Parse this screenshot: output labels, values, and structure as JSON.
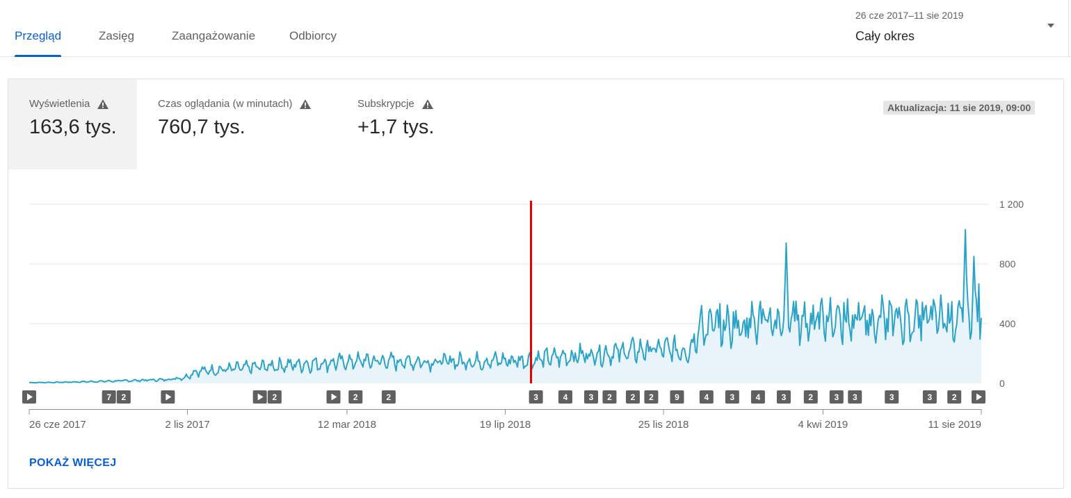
{
  "tabs": [
    {
      "label": "Przegląd",
      "active": true
    },
    {
      "label": "Zasięg",
      "active": false
    },
    {
      "label": "Zaangażowanie",
      "active": false
    },
    {
      "label": "Odbiorcy",
      "active": false
    }
  ],
  "date_picker": {
    "range": "26 cze 2017–11 sie 2019",
    "period": "Cały okres",
    "icon": "chevron-down-icon"
  },
  "metrics": [
    {
      "label": "Wyświetlenia",
      "value": "163,6 tys.",
      "icon": "warning-icon",
      "active": true
    },
    {
      "label": "Czas oglądania (w minutach)",
      "value": "760,7 tys.",
      "icon": "warning-icon",
      "active": false
    },
    {
      "label": "Subskrypcje",
      "value": "+1,7 tys.",
      "icon": "warning-icon",
      "active": false
    }
  ],
  "updated": "Aktualizacja: 11 sie 2019, 09:00",
  "show_more": "POKAŻ WIĘCEJ",
  "colors": {
    "accent": "#065fd4",
    "series": "#2ba3c9",
    "fill": "#e8f4fa",
    "annotation": "#e00000",
    "marker": "#606060"
  },
  "chart_data": {
    "type": "area",
    "ylim": [
      0,
      1200
    ],
    "yticks": [
      {
        "value": 0,
        "label": "0"
      },
      {
        "value": 400,
        "label": "400"
      },
      {
        "value": 800,
        "label": "800"
      },
      {
        "value": 1200,
        "label": "1 200"
      }
    ],
    "xstart": "2017-06-26",
    "xend": "2019-08-11",
    "xticks": [
      {
        "date": "2017-06-26",
        "label": "26 cze 2017"
      },
      {
        "date": "2017-11-02",
        "label": "2 lis 2017"
      },
      {
        "date": "2018-03-12",
        "label": "12 mar 2018"
      },
      {
        "date": "2018-07-19",
        "label": "19 lip 2018"
      },
      {
        "date": "2018-11-25",
        "label": "25 lis 2018"
      },
      {
        "date": "2019-04-04",
        "label": "4 kwi 2019"
      },
      {
        "date": "2019-08-11",
        "label": "11 sie 2019"
      }
    ],
    "grid": true,
    "trend": [
      {
        "date": "2017-06-26",
        "value": 5
      },
      {
        "date": "2017-07-25",
        "value": 8
      },
      {
        "date": "2017-08-30",
        "value": 15
      },
      {
        "date": "2017-10-15",
        "value": 25
      },
      {
        "date": "2017-10-31",
        "value": 40
      },
      {
        "date": "2017-11-08",
        "value": 80
      },
      {
        "date": "2018-01-15",
        "value": 120
      },
      {
        "date": "2018-03-25",
        "value": 150
      },
      {
        "date": "2018-05-20",
        "value": 145
      },
      {
        "date": "2018-08-05",
        "value": 155
      },
      {
        "date": "2018-09-20",
        "value": 190
      },
      {
        "date": "2018-11-20",
        "value": 230
      },
      {
        "date": "2018-12-15",
        "value": 220
      },
      {
        "date": "2018-12-25",
        "value": 370
      },
      {
        "date": "2019-02-20",
        "value": 420
      },
      {
        "date": "2019-05-15",
        "value": 420
      },
      {
        "date": "2019-08-01",
        "value": 440
      },
      {
        "date": "2019-08-11",
        "value": 520
      }
    ],
    "spikes": [
      {
        "date": "2019-03-05",
        "value": 940
      },
      {
        "date": "2019-07-29",
        "value": 1030
      },
      {
        "date": "2019-08-05",
        "value": 850
      }
    ],
    "annotation_line_date": "2018-08-09",
    "markers": [
      {
        "date": "2017-06-26",
        "label": "",
        "type": "play"
      },
      {
        "date": "2017-08-30",
        "label": "7",
        "type": "count"
      },
      {
        "date": "2017-09-11",
        "label": "2",
        "type": "count"
      },
      {
        "date": "2017-10-17",
        "label": "",
        "type": "play"
      },
      {
        "date": "2017-12-31",
        "label": "",
        "type": "play"
      },
      {
        "date": "2018-01-12",
        "label": "2",
        "type": "count"
      },
      {
        "date": "2018-03-01",
        "label": "",
        "type": "play"
      },
      {
        "date": "2018-03-19",
        "label": "2",
        "type": "count"
      },
      {
        "date": "2018-04-15",
        "label": "2",
        "type": "count"
      },
      {
        "date": "2018-08-13",
        "label": "3",
        "type": "count"
      },
      {
        "date": "2018-09-06",
        "label": "4",
        "type": "count"
      },
      {
        "date": "2018-09-27",
        "label": "3",
        "type": "count"
      },
      {
        "date": "2018-10-12",
        "label": "2",
        "type": "count"
      },
      {
        "date": "2018-10-31",
        "label": "2",
        "type": "count"
      },
      {
        "date": "2018-11-15",
        "label": "2",
        "type": "count"
      },
      {
        "date": "2018-12-06",
        "label": "9",
        "type": "count"
      },
      {
        "date": "2018-12-30",
        "label": "4",
        "type": "count"
      },
      {
        "date": "2019-01-20",
        "label": "3",
        "type": "count"
      },
      {
        "date": "2019-02-10",
        "label": "4",
        "type": "count"
      },
      {
        "date": "2019-03-03",
        "label": "3",
        "type": "count"
      },
      {
        "date": "2019-03-25",
        "label": "2",
        "type": "count"
      },
      {
        "date": "2019-04-15",
        "label": "3",
        "type": "count"
      },
      {
        "date": "2019-04-30",
        "label": "3",
        "type": "count"
      },
      {
        "date": "2019-05-30",
        "label": "3",
        "type": "count"
      },
      {
        "date": "2019-06-30",
        "label": "3",
        "type": "count"
      },
      {
        "date": "2019-07-20",
        "label": "2",
        "type": "count"
      },
      {
        "date": "2019-08-09",
        "label": "",
        "type": "play"
      }
    ]
  }
}
